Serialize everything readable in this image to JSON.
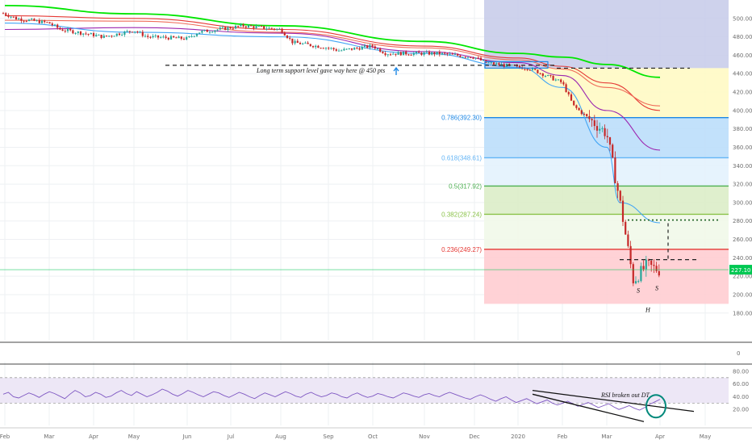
{
  "chart_data": [
    {
      "type": "line",
      "subtype": "candlestick-with-moving-averages",
      "title": "",
      "xlabel": "",
      "ylabel": "",
      "ylim": [
        150,
        520
      ],
      "grid": true,
      "x_ticks": [
        "Feb",
        "Mar",
        "Apr",
        "May",
        "Jun",
        "Jul",
        "Aug",
        "Sep",
        "Oct",
        "Nov",
        "Dec",
        "2020",
        "Feb",
        "Mar",
        "Apr",
        "May"
      ],
      "y_ticks": [
        180,
        200,
        220,
        240,
        260,
        280,
        300,
        320,
        340,
        360,
        380,
        400,
        420,
        440,
        460,
        480,
        500
      ],
      "last_price": "227.10",
      "last_price_color": "#00c853",
      "price_path": [
        [
          "Feb",
          505
        ],
        [
          "Feb+",
          500
        ],
        [
          "Mar",
          495
        ],
        [
          "Mar+",
          488
        ],
        [
          "Apr",
          482
        ],
        [
          "Apr+",
          480
        ],
        [
          "May",
          487
        ],
        [
          "May+",
          480
        ],
        [
          "Jun",
          478
        ],
        [
          "Jun+",
          485
        ],
        [
          "Jul",
          490
        ],
        [
          "Jul+",
          492
        ],
        [
          "Aug",
          488
        ],
        [
          "Aug+",
          474
        ],
        [
          "Sep",
          468
        ],
        [
          "Sep+",
          465
        ],
        [
          "Oct",
          470
        ],
        [
          "Oct+",
          462
        ],
        [
          "Nov",
          462
        ],
        [
          "Nov+",
          462
        ],
        [
          "Dec",
          458
        ],
        [
          "Dec+",
          452
        ],
        [
          "2020",
          447
        ],
        [
          "2020+",
          446
        ],
        [
          "Feb",
          430
        ],
        [
          "Feb+",
          405
        ],
        [
          "Mar",
          375
        ],
        [
          "Mar+",
          300
        ],
        [
          "Mar++",
          215
        ],
        [
          "Mar+++",
          232
        ],
        [
          "Apr",
          226
        ]
      ],
      "moving_averages": [
        {
          "color": "#00e600",
          "points": [
            [
              "Feb",
              514
            ],
            [
              "May",
              505
            ],
            [
              "Aug",
              492
            ],
            [
              "Nov",
              475
            ],
            [
              "2020",
              462
            ],
            [
              "Feb",
              458
            ],
            [
              "Mar",
              450
            ],
            [
              "Apr",
              436
            ]
          ]
        },
        {
          "color": "#e53935",
          "points": [
            [
              "Feb",
              503
            ],
            [
              "May",
              500
            ],
            [
              "Aug",
              488
            ],
            [
              "Nov",
              470
            ],
            [
              "2020",
              457
            ],
            [
              "Feb",
              448
            ],
            [
              "Mar",
              430
            ],
            [
              "Apr",
              400
            ]
          ]
        },
        {
          "color": "#ef6c5a",
          "points": [
            [
              "Feb",
              498
            ],
            [
              "May",
              497
            ],
            [
              "Aug",
              485
            ],
            [
              "Nov",
              468
            ],
            [
              "2020",
              455
            ],
            [
              "Feb",
              445
            ],
            [
              "Mar",
              425
            ],
            [
              "Apr",
              405
            ]
          ]
        },
        {
          "color": "#9c27b0",
          "points": [
            [
              "Feb",
              488
            ],
            [
              "May",
              490
            ],
            [
              "Aug",
              484
            ],
            [
              "Nov",
              464
            ],
            [
              "2020",
              452
            ],
            [
              "Feb",
              438
            ],
            [
              "Mar",
              400
            ],
            [
              "Apr",
              357
            ]
          ]
        },
        {
          "color": "#42a5f5",
          "points": [
            [
              "Feb",
              495
            ],
            [
              "May",
              485
            ],
            [
              "Aug",
              480
            ],
            [
              "Nov",
              462
            ],
            [
              "2020",
              447
            ],
            [
              "Feb",
              425
            ],
            [
              "Mar",
              360
            ],
            [
              "Mar+",
              300
            ],
            [
              "Apr",
              278
            ]
          ]
        }
      ],
      "fibonacci": [
        {
          "label": "0.786(392.30)",
          "value": 392.3,
          "line": "#1e88e5",
          "fill": "#bbdefb"
        },
        {
          "label": "0.618(348.61)",
          "value": 348.61,
          "line": "#64b5f6",
          "fill": "#e3f2fd"
        },
        {
          "label": "0.5(317.92)",
          "value": 317.92,
          "line": "#4caf50",
          "fill": "#dcedc8"
        },
        {
          "label": "0.382(287.24)",
          "value": 287.24,
          "line": "#8bc34a",
          "fill": "#f1f8e9"
        },
        {
          "label": "0.236(249.27)",
          "value": 249.27,
          "line": "#e53935",
          "fill": "#ffcdd2"
        }
      ],
      "fib_top_zone_color": "#c5cae9",
      "fib_mid_zone_color": "#fff9c4",
      "annotations": {
        "support": "Long term support level gave way here @ 450 pts",
        "shoulder_left": "S",
        "head": "H",
        "shoulder_right": "S"
      }
    },
    {
      "type": "line",
      "title": "",
      "ylabel": "",
      "ylim": [
        0,
        85
      ],
      "y_ticks": [
        20,
        40,
        60,
        80
      ],
      "band": [
        30,
        70
      ],
      "band_color": "#ede7f6",
      "line_color": "#7e57c2",
      "annotation": "RSI broken out DT",
      "circle_color": "#00897b",
      "values": [
        44,
        47,
        40,
        38,
        42,
        46,
        43,
        39,
        44,
        48,
        45,
        41,
        37,
        44,
        50,
        46,
        40,
        42,
        47,
        44,
        39,
        41,
        46,
        50,
        45,
        42,
        48,
        44,
        40,
        43,
        47,
        52,
        49,
        44,
        41,
        45,
        50,
        47,
        43,
        40,
        44,
        48,
        46,
        42,
        39,
        43,
        47,
        44,
        40,
        37,
        42,
        46,
        43,
        40,
        44,
        48,
        45,
        41,
        39,
        44,
        47,
        43,
        40,
        42,
        46,
        44,
        40,
        38,
        43,
        46,
        42,
        39,
        41,
        45,
        43,
        40,
        38,
        42,
        46,
        44,
        41,
        39,
        43,
        45,
        42,
        40,
        44,
        47,
        44,
        41,
        38,
        36,
        40,
        43,
        40,
        36,
        33,
        37,
        40,
        35,
        31,
        34,
        37,
        33,
        29,
        32,
        35,
        30,
        27,
        30,
        33,
        29,
        25,
        28,
        31,
        27,
        23,
        26,
        29,
        24,
        20,
        23,
        26,
        22,
        19,
        23,
        28,
        32,
        36
      ]
    }
  ]
}
